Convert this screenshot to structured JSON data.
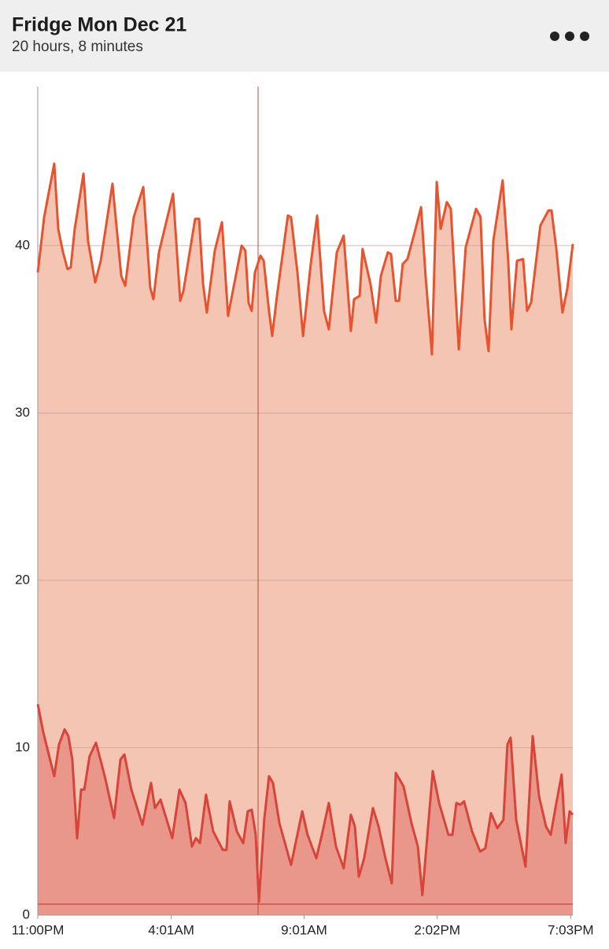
{
  "chart_data": {
    "type": "area",
    "title": "Fridge Mon Dec 21",
    "subtitle": "20 hours, 8 minutes",
    "xlim": [
      0,
      20.13
    ],
    "xticks": [
      {
        "value": 0,
        "label": "11:00PM"
      },
      {
        "value": 5.02,
        "label": "4:01AM"
      },
      {
        "value": 10.02,
        "label": "9:01AM"
      },
      {
        "value": 15.03,
        "label": "2:02PM"
      },
      {
        "value": 20.05,
        "label": "7:03PM"
      }
    ],
    "ylim": [
      0,
      49.5
    ],
    "yticks": [
      0,
      10,
      20,
      30,
      40
    ],
    "grid": true,
    "series": [
      {
        "color": "#e5532f",
        "fill": "#f5c5b4",
        "x": [
          0,
          0.24,
          0.62,
          0.77,
          0.95,
          1.12,
          1.24,
          1.39,
          1.72,
          1.89,
          2.16,
          2.37,
          2.81,
          3.14,
          3.29,
          3.61,
          3.97,
          4.23,
          4.35,
          4.56,
          5.09,
          5.36,
          5.48,
          5.92,
          6.07,
          6.22,
          6.36,
          6.66,
          6.93,
          7.16,
          7.28,
          7.67,
          7.81,
          7.93,
          8.05,
          8.17,
          8.38,
          8.5,
          8.7,
          8.82,
          9.0,
          9.41,
          9.53,
          9.77,
          9.98,
          10.27,
          10.51,
          10.77,
          10.95,
          11.25,
          11.51,
          11.78,
          11.9,
          12.11,
          12.22,
          12.52,
          12.73,
          12.91,
          13.17,
          13.29,
          13.47,
          13.59,
          13.73,
          13.91,
          14.18,
          14.42,
          14.59,
          14.83,
          15.01,
          15.16,
          15.39,
          15.54,
          15.84,
          16.1,
          16.49,
          16.66,
          16.81,
          16.96,
          17.14,
          17.49,
          17.7,
          17.82,
          18.03,
          18.26,
          18.41,
          18.56,
          18.91,
          19.21,
          19.33,
          19.51,
          19.74,
          19.92,
          20.13
        ],
        "values": [
          38.4,
          41.7,
          44.9,
          41.0,
          39.6,
          38.6,
          38.7,
          41.0,
          44.3,
          40.3,
          37.8,
          39.1,
          43.7,
          38.2,
          37.6,
          41.7,
          43.5,
          37.5,
          36.8,
          39.6,
          43.1,
          36.7,
          37.3,
          41.6,
          41.6,
          37.7,
          36.0,
          39.7,
          41.4,
          35.8,
          36.8,
          40.0,
          39.7,
          36.6,
          36.1,
          38.4,
          39.4,
          39.1,
          36.1,
          34.6,
          37.0,
          41.8,
          41.7,
          38.4,
          34.6,
          38.9,
          41.8,
          36.1,
          35.0,
          39.6,
          40.6,
          34.9,
          36.8,
          37.0,
          39.8,
          37.7,
          35.4,
          38.2,
          39.6,
          39.5,
          36.7,
          36.7,
          38.9,
          39.2,
          40.8,
          42.3,
          38.2,
          33.5,
          43.8,
          41.0,
          42.6,
          42.2,
          33.8,
          39.9,
          42.2,
          41.7,
          35.6,
          33.7,
          40.3,
          43.9,
          39.1,
          35.0,
          39.1,
          39.2,
          36.1,
          36.6,
          41.2,
          42.1,
          42.1,
          39.8,
          36.0,
          37.4,
          40.1
        ]
      },
      {
        "color": "#d8433a",
        "fill": "#e8978a",
        "x": [
          0,
          0.21,
          0.62,
          0.8,
          1.01,
          1.15,
          1.3,
          1.48,
          1.63,
          1.75,
          1.95,
          2.19,
          2.52,
          2.87,
          3.11,
          3.26,
          3.52,
          3.94,
          4.26,
          4.41,
          4.62,
          5.06,
          5.33,
          5.56,
          5.8,
          5.95,
          6.1,
          6.33,
          6.6,
          6.96,
          7.1,
          7.22,
          7.49,
          7.73,
          7.9,
          8.05,
          8.2,
          8.32,
          8.52,
          8.7,
          8.85,
          9.09,
          9.53,
          9.95,
          10.15,
          10.48,
          10.69,
          10.95,
          11.22,
          11.51,
          11.78,
          11.93,
          12.08,
          12.28,
          12.61,
          12.82,
          13.08,
          13.32,
          13.47,
          13.76,
          14.06,
          14.3,
          14.47,
          14.86,
          15.1,
          15.45,
          15.6,
          15.75,
          15.9,
          16.04,
          16.34,
          16.64,
          16.84,
          17.05,
          17.29,
          17.52,
          17.67,
          17.79,
          18.0,
          18.35,
          18.62,
          18.86,
          19.12,
          19.3,
          19.51,
          19.71,
          19.86,
          20.01,
          20.13
        ],
        "values": [
          12.6,
          10.9,
          8.3,
          10.2,
          11.1,
          10.7,
          9.3,
          4.6,
          7.5,
          7.5,
          9.5,
          10.3,
          8.3,
          5.8,
          9.3,
          9.6,
          7.5,
          5.4,
          7.9,
          6.4,
          6.9,
          4.6,
          7.5,
          6.7,
          4.1,
          4.6,
          4.3,
          7.2,
          5.0,
          3.9,
          3.9,
          6.8,
          5.0,
          4.3,
          6.2,
          6.3,
          4.8,
          0.8,
          5.7,
          8.3,
          7.9,
          5.5,
          3.0,
          6.2,
          4.8,
          3.4,
          4.8,
          6.7,
          4.1,
          2.8,
          6.0,
          5.3,
          2.3,
          3.4,
          6.4,
          5.3,
          3.4,
          1.9,
          8.5,
          7.7,
          5.5,
          4.1,
          1.2,
          8.6,
          6.7,
          4.8,
          4.8,
          6.7,
          6.6,
          6.8,
          5.0,
          3.8,
          4.0,
          6.1,
          5.2,
          5.7,
          10.2,
          10.6,
          5.7,
          2.9,
          10.7,
          7.1,
          5.3,
          4.8,
          6.7,
          8.4,
          4.3,
          6.2,
          6.0
        ]
      }
    ]
  }
}
